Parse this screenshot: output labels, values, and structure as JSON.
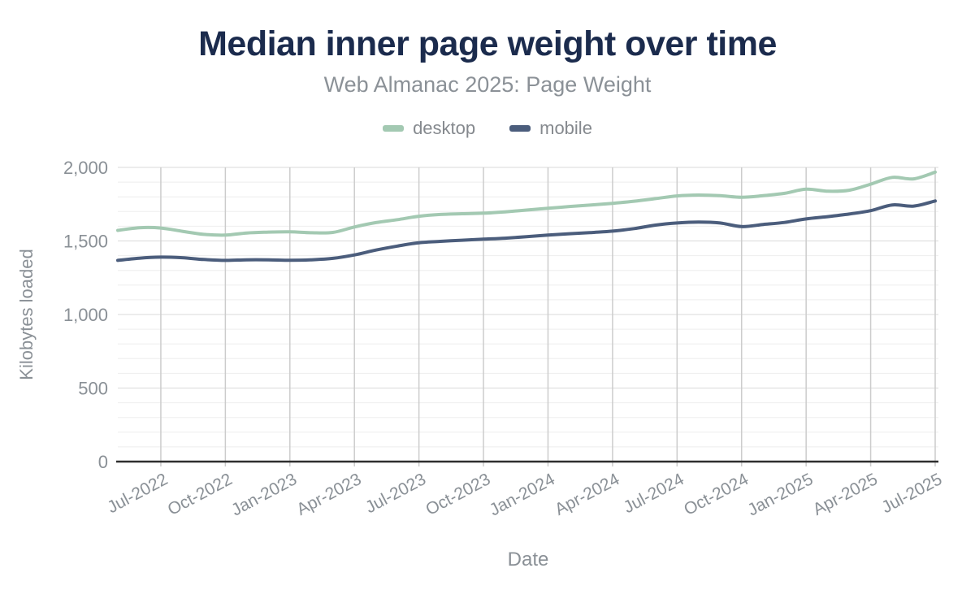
{
  "header": {
    "title": "Median inner page weight over time",
    "subtitle": "Web Almanac 2025: Page Weight"
  },
  "legend": [
    {
      "label": "desktop",
      "color": "#a3c9b2"
    },
    {
      "label": "mobile",
      "color": "#4b5d7c"
    }
  ],
  "colors": {
    "title": "#1b2b4d",
    "subtitle": "#8b9197",
    "axis_text": "#8a9096",
    "axis_line": "#2e2e2e",
    "grid_vertical": "#cccccc",
    "grid_major": "#dadada",
    "grid_minor": "#eeeeee",
    "desktop_line": "#a3c9b2",
    "mobile_line": "#4b5d7c"
  },
  "chart_data": {
    "type": "line",
    "title": "Median inner page weight over time",
    "subtitle": "Web Almanac 2025: Page Weight",
    "xlabel": "Date",
    "ylabel": "Kilobytes loaded",
    "ylim": [
      0,
      2000
    ],
    "y_ticks": [
      0,
      500,
      1000,
      1500,
      2000
    ],
    "y_minor_step": 100,
    "grid": true,
    "legend_position": "top",
    "x": [
      "May-2022",
      "Jun-2022",
      "Jul-2022",
      "Aug-2022",
      "Sep-2022",
      "Oct-2022",
      "Nov-2022",
      "Dec-2022",
      "Jan-2023",
      "Feb-2023",
      "Mar-2023",
      "Apr-2023",
      "May-2023",
      "Jun-2023",
      "Jul-2023",
      "Aug-2023",
      "Sep-2023",
      "Oct-2023",
      "Nov-2023",
      "Dec-2023",
      "Jan-2024",
      "Feb-2024",
      "Mar-2024",
      "Apr-2024",
      "May-2024",
      "Jun-2024",
      "Jul-2024",
      "Aug-2024",
      "Sep-2024",
      "Oct-2024",
      "Nov-2024",
      "Dec-2024",
      "Jan-2025",
      "Feb-2025",
      "Mar-2025",
      "Apr-2025",
      "May-2025",
      "Jun-2025",
      "Jul-2025"
    ],
    "x_tick_indices": [
      2,
      5,
      8,
      11,
      14,
      17,
      20,
      23,
      26,
      29,
      32,
      35,
      38
    ],
    "series": [
      {
        "name": "desktop",
        "color": "#a3c9b2",
        "values": [
          1572,
          1590,
          1588,
          1566,
          1545,
          1540,
          1554,
          1560,
          1562,
          1556,
          1558,
          1595,
          1625,
          1645,
          1668,
          1680,
          1685,
          1689,
          1698,
          1710,
          1722,
          1734,
          1745,
          1756,
          1770,
          1788,
          1806,
          1812,
          1808,
          1797,
          1808,
          1824,
          1852,
          1838,
          1845,
          1886,
          1932,
          1922,
          1968
        ]
      },
      {
        "name": "mobile",
        "color": "#4b5d7c",
        "values": [
          1368,
          1383,
          1390,
          1386,
          1374,
          1368,
          1372,
          1372,
          1369,
          1372,
          1382,
          1405,
          1438,
          1465,
          1488,
          1497,
          1505,
          1512,
          1519,
          1529,
          1540,
          1549,
          1557,
          1567,
          1584,
          1608,
          1622,
          1628,
          1622,
          1598,
          1612,
          1626,
          1650,
          1665,
          1683,
          1706,
          1745,
          1737,
          1772
        ]
      }
    ]
  }
}
